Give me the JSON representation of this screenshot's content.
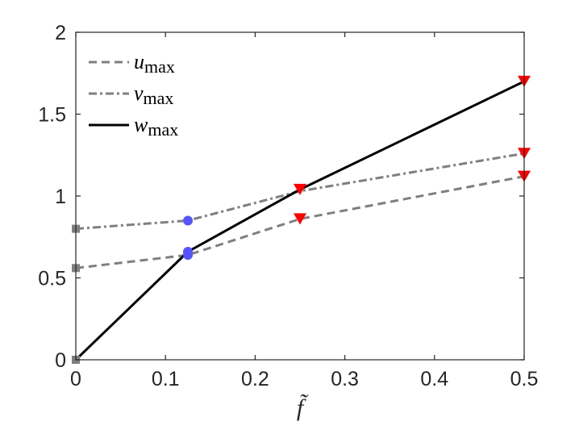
{
  "chart_data": {
    "type": "line",
    "title": "",
    "xlabel": "f̃",
    "ylabel": "",
    "xlim": [
      0,
      0.5
    ],
    "ylim": [
      0,
      2
    ],
    "grid": false,
    "legend_position": "top-left",
    "x_ticks": [
      0,
      0.1,
      0.2,
      0.3,
      0.4,
      0.5
    ],
    "x_tick_labels": [
      "0",
      "0.1",
      "0.2",
      "0.3",
      "0.4",
      "0.5"
    ],
    "y_ticks": [
      0,
      0.5,
      1,
      1.5,
      2
    ],
    "y_tick_labels": [
      "0",
      "0.5",
      "1",
      "1.5",
      "2"
    ],
    "series": [
      {
        "name": "u",
        "name_sub": "max",
        "style": "dashed",
        "color": "#7f7f7f",
        "x": [
          0,
          0.125,
          0.25,
          0.5
        ],
        "y": [
          0.56,
          0.64,
          0.86,
          1.12
        ]
      },
      {
        "name": "v",
        "name_sub": "max",
        "style": "dashdot",
        "color": "#7f7f7f",
        "x": [
          0,
          0.125,
          0.25,
          0.5
        ],
        "y": [
          0.8,
          0.85,
          1.03,
          1.26
        ]
      },
      {
        "name": "w",
        "name_sub": "max",
        "style": "solid",
        "color": "#000000",
        "x": [
          0,
          0.125,
          0.25,
          0.5
        ],
        "y": [
          0,
          0.66,
          1.04,
          1.7
        ]
      }
    ],
    "markers": [
      {
        "shape": "square",
        "color": "#7f7f7f",
        "x": 0,
        "y": 0.56
      },
      {
        "shape": "square",
        "color": "#7f7f7f",
        "x": 0,
        "y": 0.8
      },
      {
        "shape": "square",
        "color": "#7f7f7f",
        "x": 0,
        "y": 0
      },
      {
        "shape": "circle",
        "color": "#5555ff",
        "x": 0.125,
        "y": 0.85
      },
      {
        "shape": "circle",
        "color": "#5555ff",
        "x": 0.125,
        "y": 0.66
      },
      {
        "shape": "circle",
        "color": "#5555ff",
        "x": 0.125,
        "y": 0.64
      },
      {
        "shape": "triangle-down",
        "color": "#ff0000",
        "x": 0.25,
        "y": 1.04
      },
      {
        "shape": "triangle-down",
        "color": "#ff0000",
        "x": 0.25,
        "y": 0.86
      },
      {
        "shape": "triangle-down",
        "color": "#ff0000",
        "x": 0.5,
        "y": 1.7
      },
      {
        "shape": "triangle-down",
        "color": "#ff0000",
        "x": 0.5,
        "y": 1.26
      },
      {
        "shape": "triangle-down",
        "color": "#ff0000",
        "x": 0.5,
        "y": 1.12
      }
    ]
  }
}
